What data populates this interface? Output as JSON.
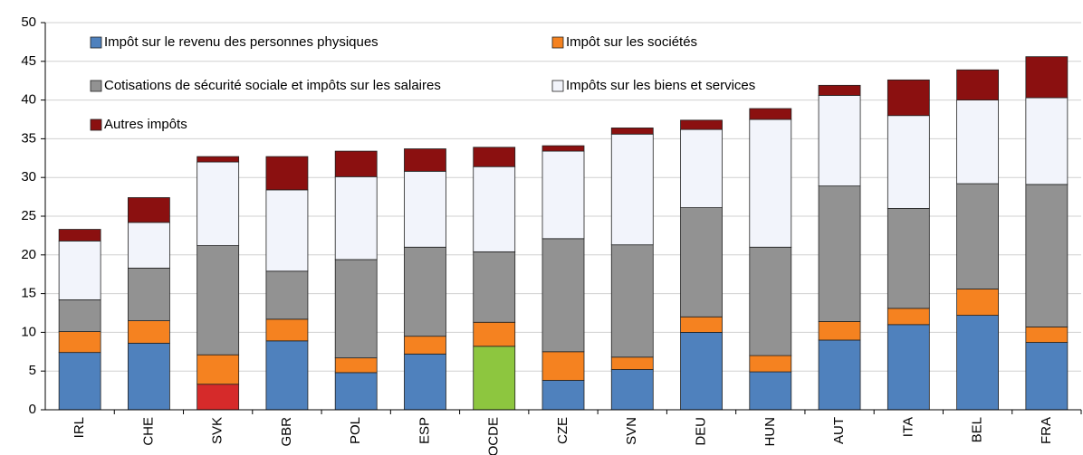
{
  "chart_data": {
    "type": "stacked_bar",
    "categories": [
      "IRL",
      "CHE",
      "SVK",
      "GBR",
      "POL",
      "ESP",
      "OCDE",
      "CZE",
      "SVN",
      "DEU",
      "HUN",
      "AUT",
      "ITA",
      "BEL",
      "FRA"
    ],
    "series": [
      {
        "name": "Impôt sur le revenu des personnes physiques",
        "color": "#4f81bd",
        "colors": [
          "#4f81bd",
          "#4f81bd",
          "#d62a2a",
          "#4f81bd",
          "#4f81bd",
          "#4f81bd",
          "#8dc63f",
          "#4f81bd",
          "#4f81bd",
          "#4f81bd",
          "#4f81bd",
          "#4f81bd",
          "#4f81bd",
          "#4f81bd",
          "#4f81bd"
        ],
        "values": [
          7.4,
          8.6,
          3.3,
          8.9,
          4.8,
          7.2,
          8.2,
          3.8,
          5.2,
          10.0,
          4.9,
          9.0,
          11.0,
          12.2,
          8.7
        ]
      },
      {
        "name": "Impôt sur les sociétés",
        "color": "#f58220",
        "values": [
          2.7,
          2.9,
          3.8,
          2.8,
          1.9,
          2.3,
          3.1,
          3.7,
          1.6,
          2.0,
          2.1,
          2.4,
          2.1,
          3.4,
          2.0
        ]
      },
      {
        "name": "Cotisations de sécurité sociale et impôts sur les salaires",
        "color": "#929292",
        "values": [
          4.1,
          6.8,
          14.1,
          6.2,
          12.7,
          11.5,
          9.1,
          14.6,
          14.5,
          14.1,
          14.0,
          17.5,
          12.9,
          13.6,
          18.4
        ]
      },
      {
        "name": "Impôts sur les biens et services",
        "color": "#f2f4fb",
        "values": [
          7.6,
          5.9,
          10.8,
          10.5,
          10.7,
          9.8,
          11.0,
          11.3,
          14.3,
          10.1,
          16.5,
          11.7,
          12.0,
          10.8,
          11.2
        ]
      },
      {
        "name": "Autres impôts",
        "color": "#8b1010",
        "values": [
          1.5,
          3.2,
          0.7,
          4.3,
          3.3,
          2.9,
          2.5,
          0.7,
          0.8,
          1.2,
          1.4,
          1.3,
          4.6,
          3.9,
          5.3
        ]
      }
    ],
    "ylim": [
      0,
      50
    ],
    "yticks": [
      0,
      5,
      10,
      15,
      20,
      25,
      30,
      35,
      40,
      45,
      50
    ],
    "grid": true
  }
}
